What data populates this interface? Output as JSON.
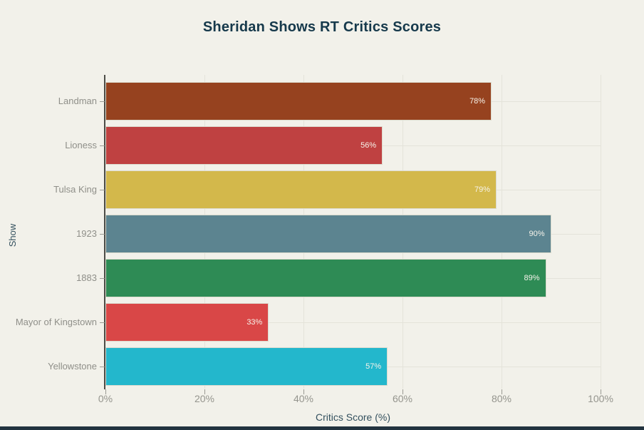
{
  "title": "Sheridan Shows RT Critics Scores",
  "colors": {
    "background": "#f2f1ea",
    "title_text": "#16394b",
    "axis_title_text": "#33505e",
    "tick_text": "#95958e",
    "category_text": "#8f8f89",
    "axis_line": "#4c4c47",
    "gridline": "#e4e3da",
    "bar_value_text": "#f6f3ea",
    "footer_bar": "#22333f"
  },
  "chart_data": {
    "type": "bar",
    "orientation": "horizontal",
    "title": "Sheridan Shows RT Critics Scores",
    "xlabel": "Critics Score (%)",
    "ylabel": "Show",
    "categories": [
      "Landman",
      "Lioness",
      "Tulsa King",
      "1923",
      "1883",
      "Mayor of Kingstown",
      "Yellowstone"
    ],
    "values": [
      78,
      56,
      79,
      90,
      89,
      33,
      57
    ],
    "value_labels": [
      "78%",
      "56%",
      "79%",
      "90%",
      "89%",
      "33%",
      "57%"
    ],
    "bar_colors": [
      "#96421f",
      "#bf4141",
      "#d3b84b",
      "#5c8490",
      "#2e8b55",
      "#d94747",
      "#23b7cc"
    ],
    "xlim": [
      0,
      100
    ],
    "x_tick_values": [
      0,
      20,
      40,
      60,
      80,
      100
    ],
    "x_tick_labels": [
      "0%",
      "20%",
      "40%",
      "60%",
      "80%",
      "100%"
    ],
    "grid": true,
    "legend": false
  }
}
